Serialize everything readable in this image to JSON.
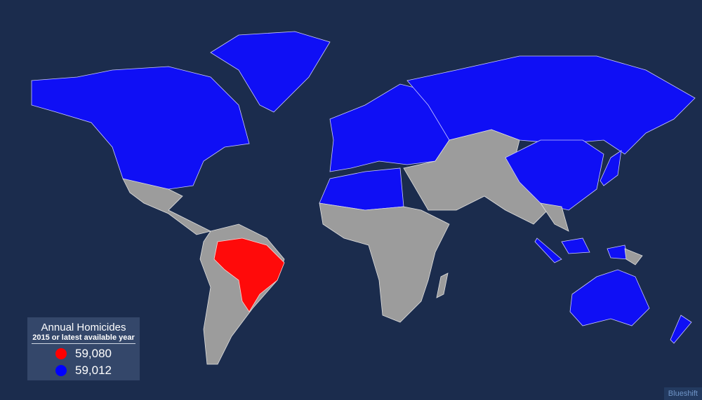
{
  "legend": {
    "title": "Annual Homicides",
    "subtitle": "2015 or latest available year",
    "items": [
      {
        "color": "#ff0000",
        "value": "59,080"
      },
      {
        "color": "#0000ff",
        "value": "59,012"
      }
    ]
  },
  "colors": {
    "background": "#1b2c4d",
    "highlight_red": "#ff0a0a",
    "highlight_blue": "#0f0ff5",
    "other": "#9c9c9c"
  },
  "brand": "Blueshift"
}
